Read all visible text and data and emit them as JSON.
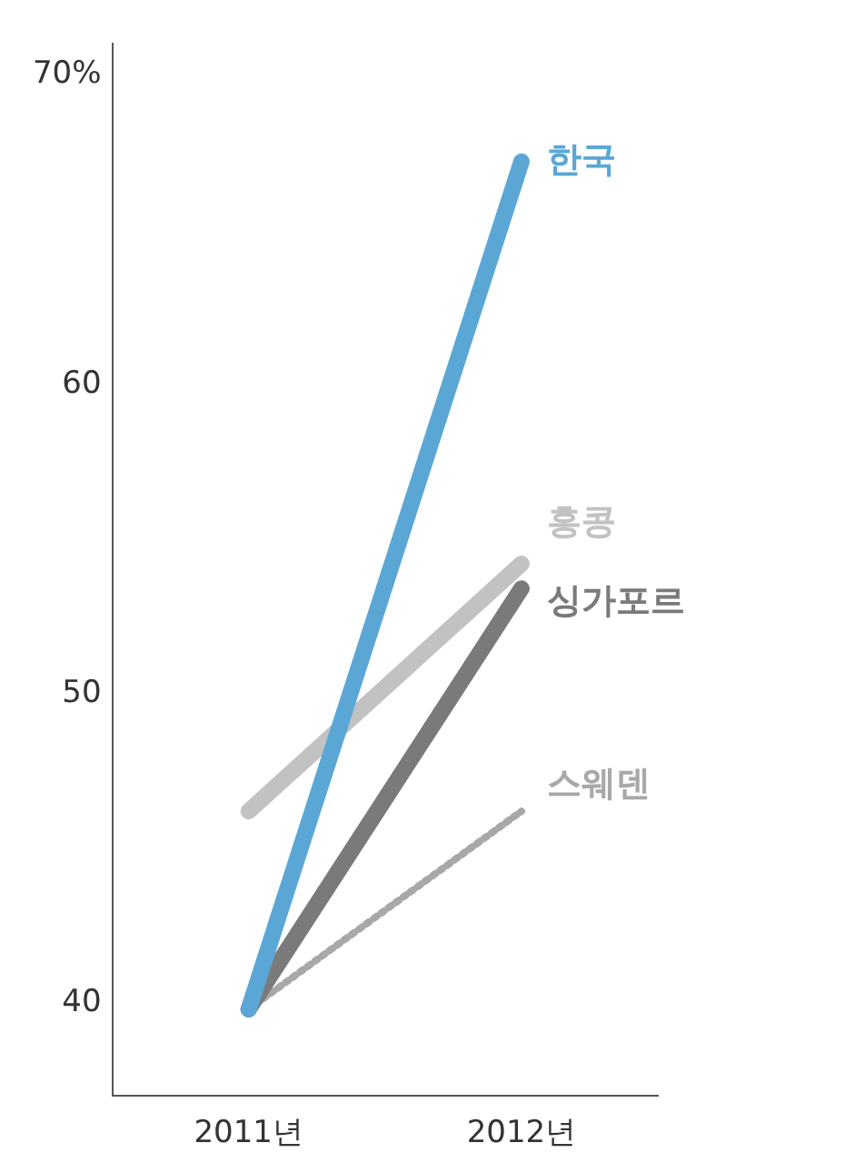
{
  "chart_data": {
    "type": "line",
    "categories": [
      "2011년",
      "2012년"
    ],
    "series": [
      {
        "name": "한국",
        "color": "#5aa7d6",
        "values": [
          39.8,
          67.2
        ]
      },
      {
        "name": "홍콩",
        "color": "#c2c2c2",
        "values": [
          46.2,
          54.2
        ]
      },
      {
        "name": "싱가포르",
        "color": "#7a7a7a",
        "values": [
          39.8,
          53.4
        ]
      },
      {
        "name": "스웨덴",
        "color": "#a8a8a8",
        "values": [
          39.8,
          46.2
        ],
        "line_style": "dotted"
      }
    ],
    "ylim": [
      37,
      71
    ],
    "yticks": [
      40,
      50,
      60,
      {
        "value": 70,
        "label": "70%"
      }
    ],
    "grid": false,
    "legend": false,
    "marker": "none",
    "line_style": "solid"
  }
}
